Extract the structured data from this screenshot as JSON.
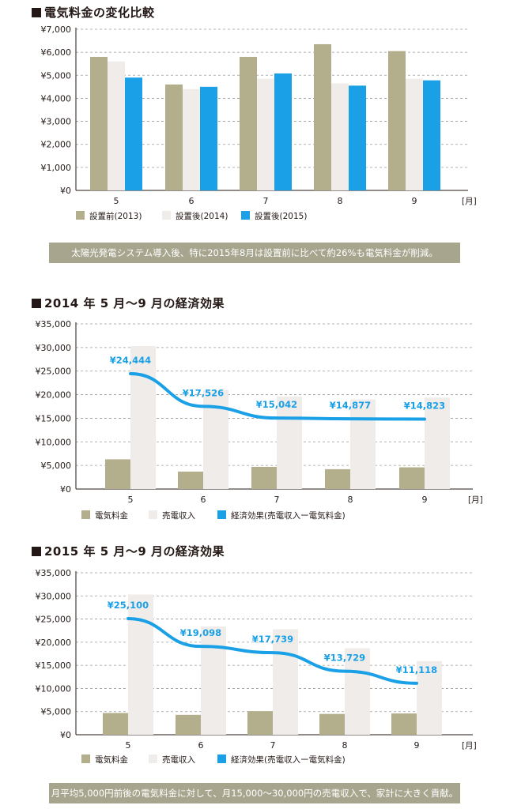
{
  "colors": {
    "olive": "#b3ae8c",
    "light": "#f0ecea",
    "blue": "#1aa0e6",
    "note_bg": "#a7a58e",
    "grid": "#9a9a9a"
  },
  "chart_data": [
    {
      "type": "bar",
      "title": "電気料金の変化比較",
      "categories": [
        "5",
        "6",
        "7",
        "8",
        "9"
      ],
      "x_unit": "[月]",
      "y_ticks": [
        "¥0",
        "¥1,000",
        "¥2,000",
        "¥3,000",
        "¥4,000",
        "¥5,000",
        "¥6,000",
        "¥7,000"
      ],
      "ylim": [
        0,
        7000
      ],
      "grid": true,
      "legend_position": "bottom-left",
      "series": [
        {
          "name": "設置前(2013)",
          "values": [
            5800,
            4600,
            5800,
            6350,
            6050
          ]
        },
        {
          "name": "設置後(2014)",
          "values": [
            5600,
            4400,
            4850,
            4650,
            4850
          ]
        },
        {
          "name": "設置後(2015)",
          "values": [
            4900,
            4500,
            5080,
            4550,
            4780
          ]
        }
      ],
      "note": "太陽光発電システム導入後、特に2015年8月は設置前に比べて約26%も電気料金が削減。"
    },
    {
      "type": "bar",
      "title": "2014 年 5 月〜9 月の経済効果",
      "categories": [
        "5",
        "6",
        "7",
        "8",
        "9"
      ],
      "x_unit": "[月]",
      "y_ticks": [
        "¥0",
        "¥5,000",
        "¥10,000",
        "¥15,000",
        "¥20,000",
        "¥25,000",
        "¥30,000",
        "¥35,000"
      ],
      "ylim": [
        0,
        35000
      ],
      "grid": true,
      "legend_position": "bottom-left",
      "series": [
        {
          "name": "電気料金",
          "values": [
            6300,
            3700,
            4700,
            4200,
            4600
          ]
        },
        {
          "name": "売電収入",
          "values": [
            30300,
            21000,
            19600,
            19000,
            19400
          ]
        }
      ],
      "line_series": {
        "name": "経済効果(売電収入ー電気料金)",
        "values": [
          24444,
          17526,
          15042,
          14877,
          14823
        ],
        "labels": [
          "¥24,444",
          "¥17,526",
          "¥15,042",
          "¥14,877",
          "¥14,823"
        ]
      }
    },
    {
      "type": "bar",
      "title": "2015 年 5 月〜9 月の経済効果",
      "categories": [
        "5",
        "6",
        "7",
        "8",
        "9"
      ],
      "x_unit": "[月]",
      "y_ticks": [
        "¥0",
        "¥5,000",
        "¥10,000",
        "¥15,000",
        "¥20,000",
        "¥25,000",
        "¥30,000",
        "¥35,000"
      ],
      "ylim": [
        0,
        35000
      ],
      "grid": true,
      "legend_position": "bottom-left",
      "series": [
        {
          "name": "電気料金",
          "values": [
            4700,
            4300,
            5100,
            4500,
            4600
          ]
        },
        {
          "name": "売電収入",
          "values": [
            30300,
            23400,
            22800,
            18700,
            15900
          ]
        }
      ],
      "line_series": {
        "name": "経済効果(売電収入ー電気料金)",
        "values": [
          25100,
          19098,
          17739,
          13729,
          11118
        ],
        "labels": [
          "¥25,100",
          "¥19,098",
          "¥17,739",
          "¥13,729",
          "¥11,118"
        ]
      },
      "note": "月平均5,000円前後の電気料金に対して、月15,000〜30,000円の売電収入で、家計に大きく貢献。"
    }
  ]
}
